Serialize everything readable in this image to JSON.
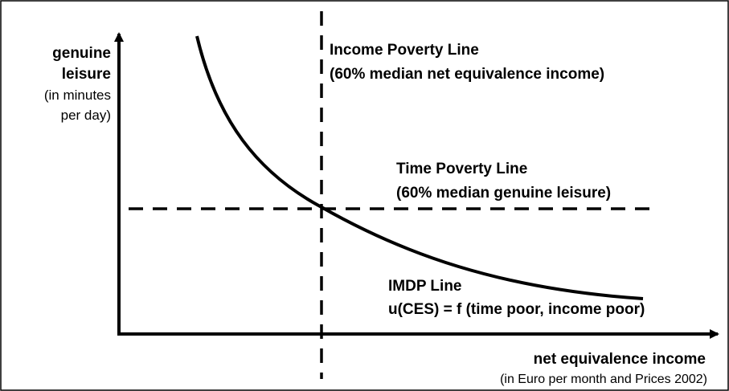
{
  "y_axis": {
    "label": [
      "genuine",
      "leisure"
    ],
    "unit": [
      "(in minutes",
      "per day)"
    ]
  },
  "x_axis": {
    "label": "net equivalence income",
    "unit": "(in Euro per month and Prices 2002)"
  },
  "income_poverty_line": {
    "title": "Income Poverty Line",
    "definition": "(60% median net equivalence income)"
  },
  "time_poverty_line": {
    "title": "Time Poverty Line",
    "definition": "(60% median genuine leisure)"
  },
  "imdp_line": {
    "title": "IMDP Line",
    "definition": "u(CES) = f (time poor, income poor)"
  }
}
